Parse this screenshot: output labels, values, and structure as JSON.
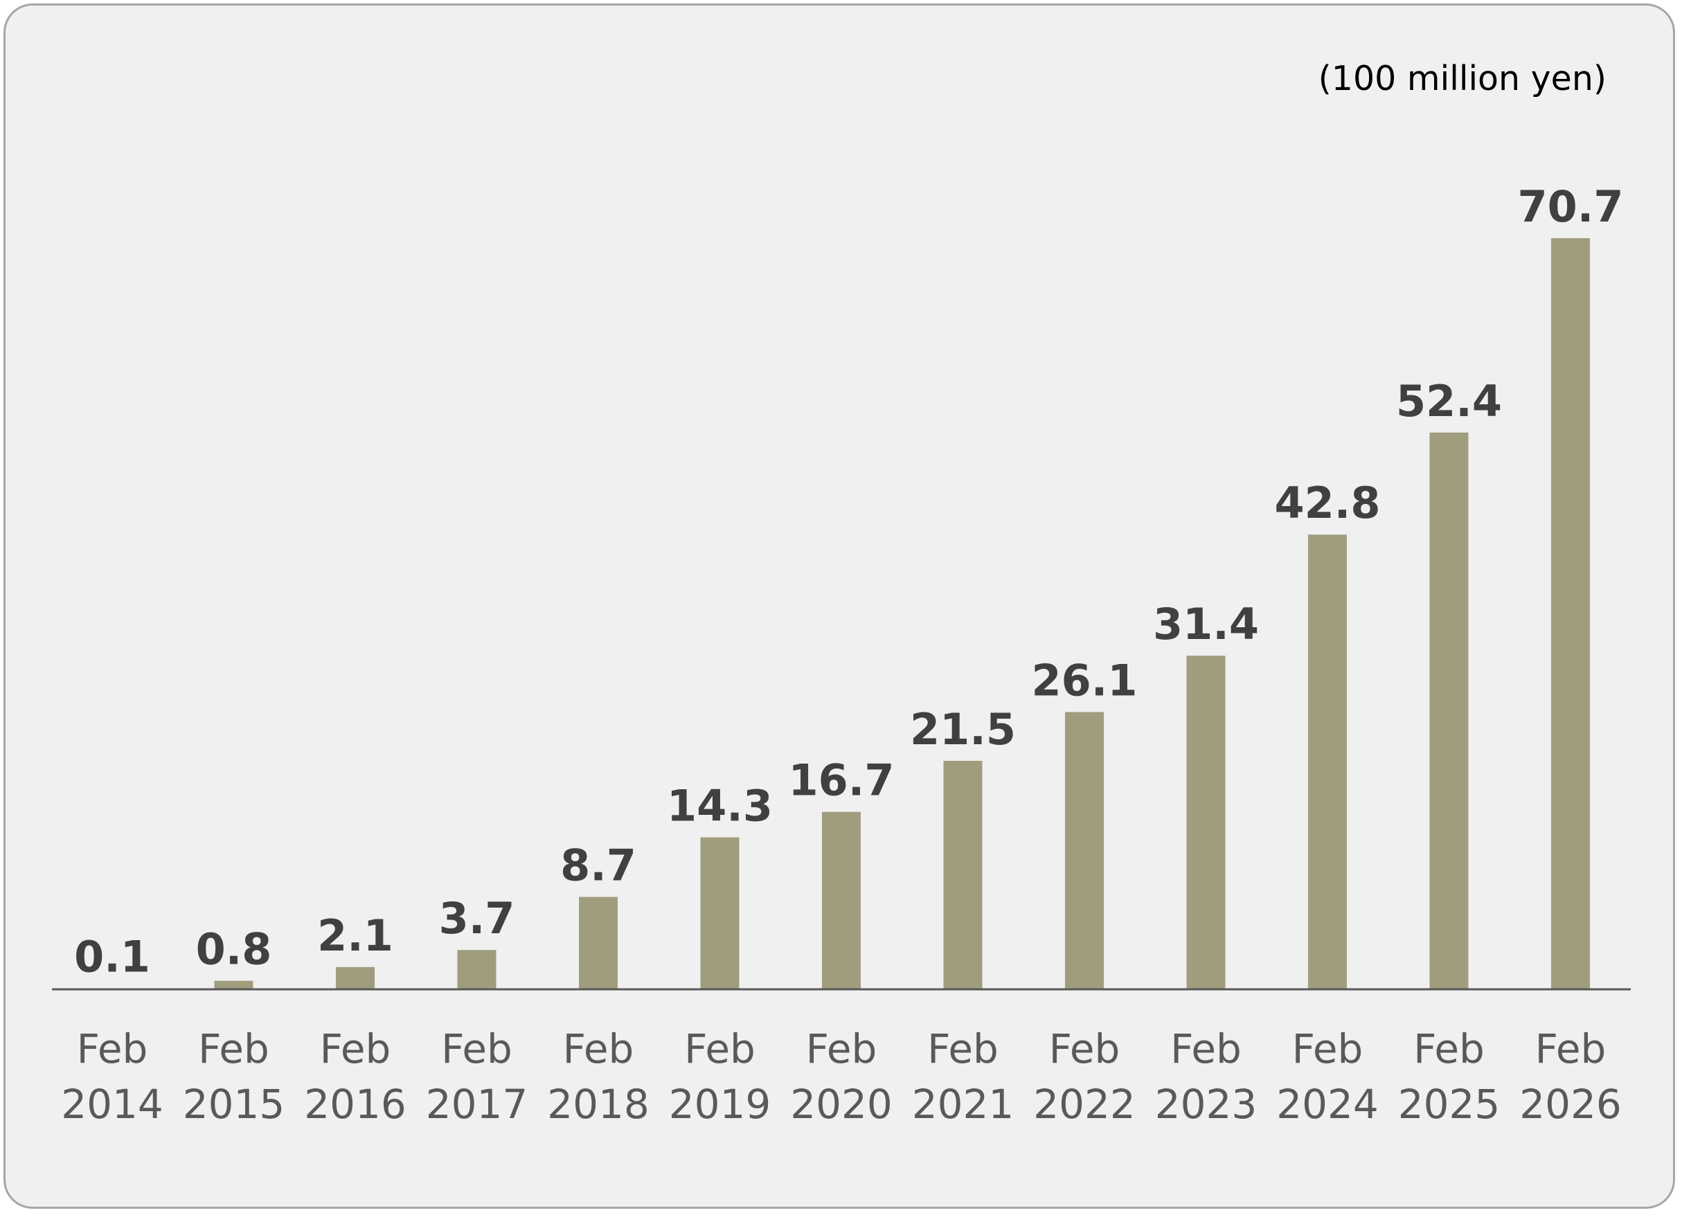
{
  "chart_data": {
    "type": "bar",
    "unit_label": "(100 million yen)",
    "categories": [
      [
        "Feb",
        "2014"
      ],
      [
        "Feb",
        "2015"
      ],
      [
        "Feb",
        "2016"
      ],
      [
        "Feb",
        "2017"
      ],
      [
        "Feb",
        "2018"
      ],
      [
        "Feb",
        "2019"
      ],
      [
        "Feb",
        "2020"
      ],
      [
        "Feb",
        "2021"
      ],
      [
        "Feb",
        "2022"
      ],
      [
        "Feb",
        "2023"
      ],
      [
        "Feb",
        "2024"
      ],
      [
        "Feb",
        "2025"
      ],
      [
        "Feb",
        "2026"
      ]
    ],
    "values": [
      0.1,
      0.8,
      2.1,
      3.7,
      8.7,
      14.3,
      16.7,
      21.5,
      26.1,
      31.4,
      42.8,
      52.4,
      70.7
    ],
    "value_labels": [
      "0.1",
      "0.8",
      "2.1",
      "3.7",
      "8.7",
      "14.3",
      "16.7",
      "21.5",
      "26.1",
      "31.4",
      "42.8",
      "52.4",
      "70.7"
    ],
    "ylim": [
      0,
      70.7
    ],
    "grid": false,
    "legend": "none",
    "colors": {
      "bar": "#a09d7e",
      "axis": "#595959",
      "value_text": "#404040",
      "tick_text": "#595959",
      "panel_bg": "#f0f0f0",
      "panel_border": "#a6a6a6"
    }
  }
}
